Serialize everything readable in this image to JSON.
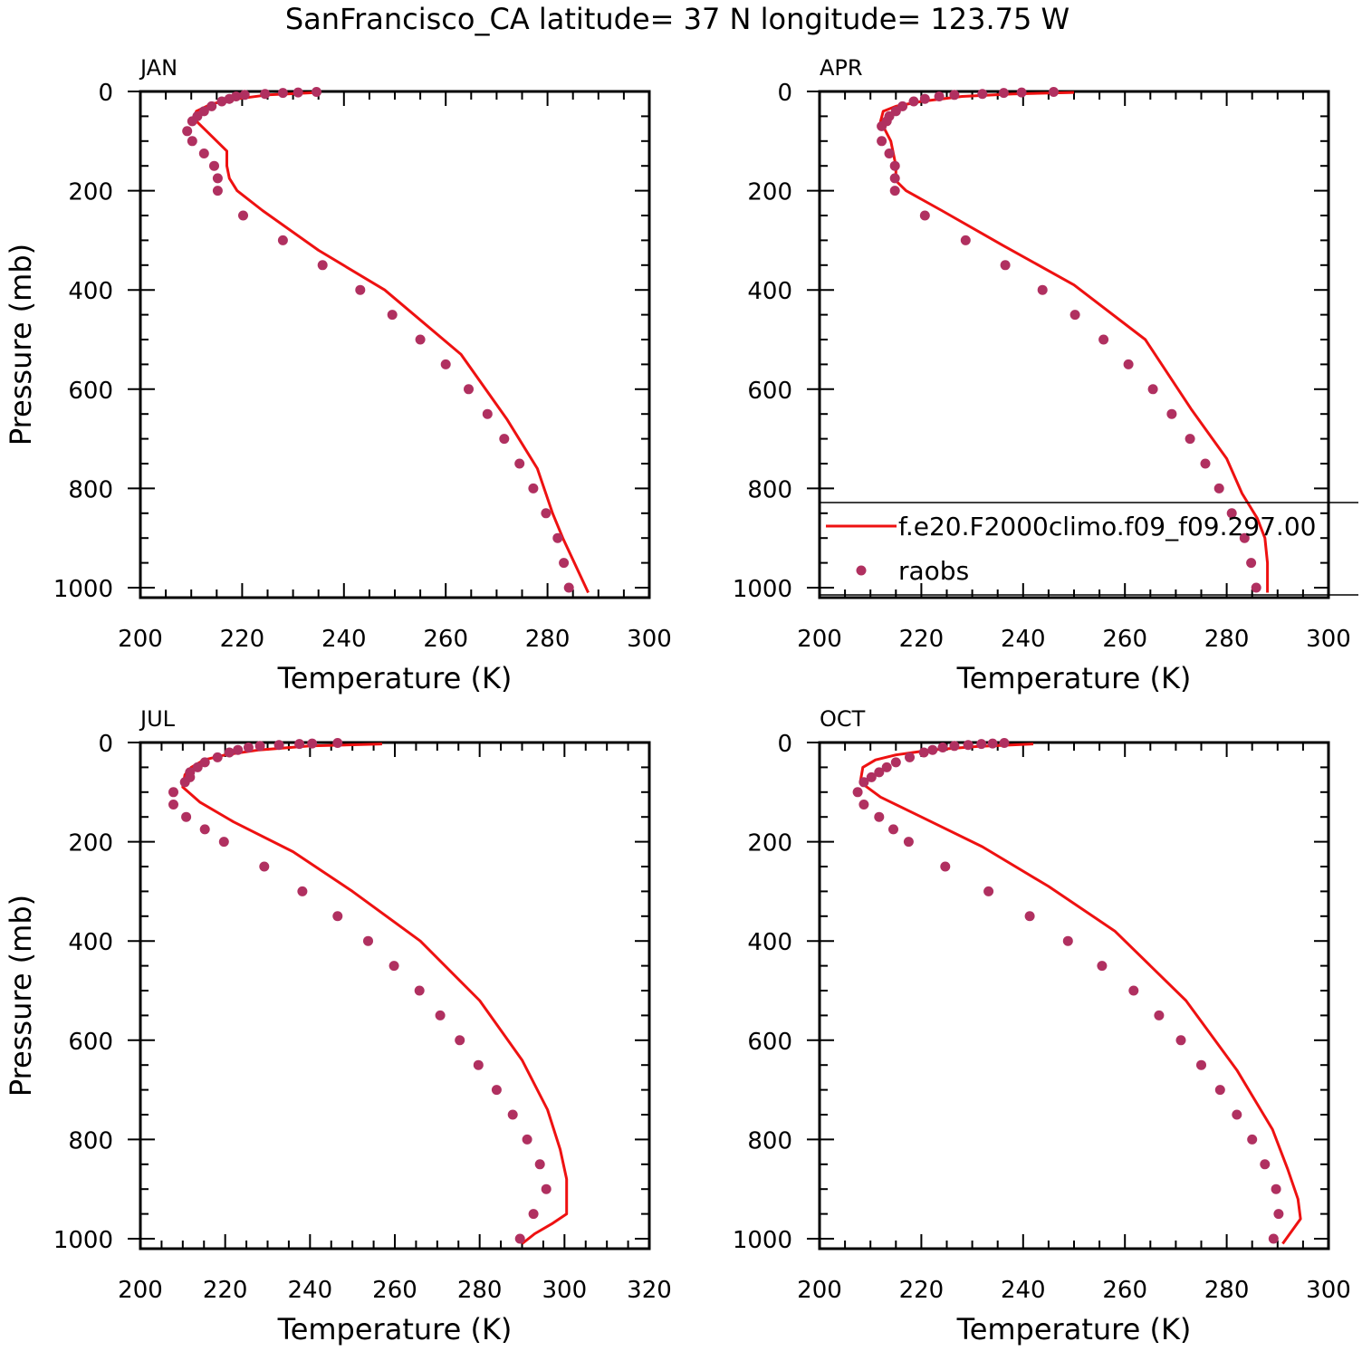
{
  "title": "SanFrancisco_CA  latitude= 37 N longitude= 123.75 W",
  "colors": {
    "model": "#ee1111",
    "obs": "#b03060",
    "axis": "#000000"
  },
  "legend": {
    "model_label": "f.e20.F2000climo.f09_f09.297.00",
    "obs_label": "raobs",
    "placement": "lower-right of APR panel"
  },
  "chart_data": [
    {
      "panel": "JAN",
      "type": "line+scatter",
      "xlabel": "Temperature (K)",
      "ylabel": "Pressure (mb)",
      "xlim": [
        200,
        300
      ],
      "ylim": [
        1000,
        0
      ],
      "xticks": [
        "200",
        "220",
        "240",
        "260",
        "280",
        "300"
      ],
      "yticks": [
        "0",
        "200",
        "400",
        "600",
        "800",
        "1000"
      ],
      "model_line": {
        "T": [
          235,
          225,
          219,
          214,
          211,
          210.5,
          213,
          217,
          217,
          217.5,
          219,
          224,
          235,
          248,
          263,
          272,
          278,
          281,
          283,
          288
        ],
        "p": [
          2,
          7,
          15,
          25,
          40,
          55,
          80,
          120,
          150,
          175,
          200,
          240,
          320,
          400,
          530,
          660,
          760,
          850,
          900,
          1010
        ]
      },
      "obs": {
        "T": [
          234.6,
          231,
          228,
          224.5,
          220.5,
          218.8,
          217.5,
          216,
          214,
          212.5,
          211.2,
          210.2,
          209.2,
          210.2,
          212.5,
          214.5,
          215.2,
          215.2,
          220.2,
          228,
          235.8,
          243.2,
          249.5,
          255,
          260,
          264.5,
          268.2,
          271.5,
          274.5,
          277.2,
          279.7,
          282,
          283.2,
          284.2
        ],
        "p": [
          1,
          2,
          3,
          5,
          7,
          10,
          15,
          20,
          30,
          40,
          50,
          60,
          80,
          100,
          125,
          150,
          175,
          200,
          250,
          300,
          350,
          400,
          450,
          500,
          550,
          600,
          650,
          700,
          750,
          800,
          850,
          900,
          950,
          1000
        ]
      }
    },
    {
      "panel": "APR",
      "type": "line+scatter",
      "xlabel": "Temperature (K)",
      "ylabel": "",
      "xlim": [
        200,
        300
      ],
      "ylim": [
        1000,
        0
      ],
      "xticks": [
        "200",
        "220",
        "240",
        "260",
        "280",
        "300"
      ],
      "yticks": [
        "0",
        "200",
        "400",
        "600",
        "800",
        "1000"
      ],
      "model_line": {
        "T": [
          250,
          238,
          228,
          220,
          215,
          212.5,
          212,
          214,
          215,
          215,
          217,
          224,
          236,
          250,
          264,
          273,
          280,
          283,
          286,
          287.5,
          288,
          288
        ],
        "p": [
          2,
          5,
          10,
          20,
          30,
          40,
          60,
          100,
          150,
          180,
          200,
          240,
          310,
          390,
          500,
          640,
          740,
          810,
          860,
          900,
          950,
          1010
        ]
      },
      "obs": {
        "T": [
          246,
          239.7,
          236.2,
          232,
          226.5,
          223.5,
          220.7,
          218.5,
          216.3,
          215,
          213.7,
          213.2,
          212.2,
          212.2,
          213.7,
          214.8,
          214.8,
          214.8,
          220.7,
          228.7,
          236.5,
          243.8,
          250.2,
          255.8,
          260.7,
          265.5,
          269.2,
          272.8,
          275.8,
          278.5,
          281,
          283.5,
          284.8,
          285.8
        ],
        "p": [
          1,
          2,
          3,
          5,
          7,
          10,
          15,
          20,
          30,
          40,
          50,
          60,
          70,
          100,
          125,
          150,
          175,
          200,
          250,
          300,
          350,
          400,
          450,
          500,
          550,
          600,
          650,
          700,
          750,
          800,
          850,
          900,
          950,
          1000
        ]
      }
    },
    {
      "panel": "JUL",
      "type": "line+scatter",
      "xlabel": "Temperature (K)",
      "ylabel": "Pressure (mb)",
      "xlim": [
        200,
        320
      ],
      "ylim": [
        1000,
        0
      ],
      "xticks": [
        "200",
        "220",
        "240",
        "260",
        "280",
        "300",
        "320"
      ],
      "yticks": [
        "0",
        "200",
        "400",
        "600",
        "800",
        "1000"
      ],
      "model_line": {
        "T": [
          257,
          240,
          228,
          220,
          215,
          212,
          210.5,
          210,
          214,
          222,
          236,
          250,
          266,
          280,
          290,
          296,
          299,
          300.5,
          300.5,
          297,
          293,
          290
        ],
        "p": [
          3,
          7,
          15,
          25,
          35,
          50,
          65,
          90,
          120,
          160,
          220,
          300,
          400,
          520,
          640,
          740,
          820,
          880,
          950,
          970,
          990,
          1010
        ]
      },
      "obs": {
        "T": [
          246.5,
          240.5,
          237.5,
          232.7,
          228.2,
          225.5,
          223,
          221,
          218.2,
          215.2,
          213.5,
          211.7,
          211.7,
          210.5,
          207.8,
          207.8,
          210.8,
          215.2,
          219.7,
          229.2,
          238.2,
          246.5,
          253.7,
          259.8,
          265.8,
          270.7,
          275.3,
          279.7,
          284,
          287.8,
          291.2,
          294.2,
          295.7,
          292.7,
          289.5
        ],
        "p": [
          1,
          2,
          3,
          5,
          7,
          10,
          15,
          20,
          30,
          40,
          50,
          60,
          70,
          80,
          100,
          125,
          150,
          175,
          200,
          250,
          300,
          350,
          400,
          450,
          500,
          550,
          600,
          650,
          700,
          750,
          800,
          850,
          900,
          950,
          1000
        ]
      }
    },
    {
      "panel": "OCT",
      "type": "line+scatter",
      "xlabel": "Temperature (K)",
      "ylabel": "",
      "xlim": [
        200,
        300
      ],
      "ylim": [
        1000,
        0
      ],
      "xticks": [
        "200",
        "220",
        "240",
        "260",
        "280",
        "300"
      ],
      "yticks": [
        "0",
        "200",
        "400",
        "600",
        "800",
        "1000"
      ],
      "model_line": {
        "T": [
          242,
          231,
          222,
          215,
          211,
          208.5,
          208,
          212,
          220,
          232,
          245,
          258,
          272,
          282,
          289,
          292,
          294,
          294.5,
          291
        ],
        "p": [
          3,
          8,
          15,
          25,
          35,
          50,
          80,
          110,
          150,
          210,
          290,
          380,
          520,
          660,
          780,
          860,
          920,
          960,
          1010
        ]
      },
      "obs": {
        "T": [
          236.3,
          234,
          231.8,
          229.2,
          226.5,
          224.2,
          222.2,
          220.5,
          217.7,
          215,
          213.2,
          211.7,
          210.2,
          208.7,
          207.5,
          208.7,
          211.7,
          214.5,
          217.5,
          224.7,
          233.2,
          241.3,
          248.8,
          255.5,
          261.7,
          266.7,
          271,
          275,
          278.7,
          282,
          285,
          287.5,
          289.7,
          290.2,
          289.2
        ],
        "p": [
          1,
          2,
          3,
          5,
          7,
          10,
          15,
          20,
          30,
          40,
          50,
          60,
          70,
          80,
          100,
          125,
          150,
          175,
          200,
          250,
          300,
          350,
          400,
          450,
          500,
          550,
          600,
          650,
          700,
          750,
          800,
          850,
          900,
          950,
          1000
        ]
      }
    }
  ]
}
